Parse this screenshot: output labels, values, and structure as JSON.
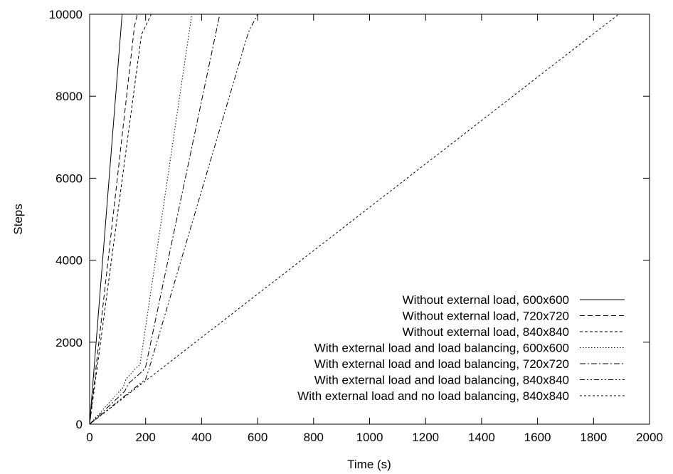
{
  "chart_data": {
    "type": "line",
    "title": "",
    "xlabel": "Time (s)",
    "ylabel": "Steps",
    "xlim": [
      0,
      2000
    ],
    "ylim": [
      0,
      10000
    ],
    "xticks": [
      0,
      200,
      400,
      600,
      800,
      1000,
      1200,
      1400,
      1600,
      1800,
      2000
    ],
    "yticks": [
      0,
      2000,
      4000,
      6000,
      8000,
      10000
    ],
    "grid": false,
    "legend_position": "bottom-right",
    "series": [
      {
        "name": "Without external load, 600x600",
        "dash": "solid",
        "points": [
          [
            0,
            0
          ],
          [
            116,
            10000
          ]
        ]
      },
      {
        "name": "Without external load, 720x720",
        "dash": "dashed",
        "points": [
          [
            0,
            0
          ],
          [
            160,
            9700
          ],
          [
            170,
            10000
          ]
        ]
      },
      {
        "name": "Without external load, 840x840",
        "dash": "short-dashed",
        "points": [
          [
            0,
            0
          ],
          [
            185,
            9500
          ],
          [
            220,
            10000
          ]
        ]
      },
      {
        "name": "With external load and load balancing, 600x600",
        "dash": "dotted",
        "points": [
          [
            0,
            0
          ],
          [
            120,
            900
          ],
          [
            130,
            1100
          ],
          [
            170,
            1400
          ],
          [
            180,
            1450
          ],
          [
            365,
            10000
          ]
        ]
      },
      {
        "name": "With external load and load balancing, 720x720",
        "dash": "dash-dot",
        "points": [
          [
            0,
            0
          ],
          [
            125,
            800
          ],
          [
            140,
            1000
          ],
          [
            190,
            1300
          ],
          [
            200,
            1400
          ],
          [
            465,
            10000
          ]
        ]
      },
      {
        "name": "With external load and load balancing, 840x840",
        "dash": "dash-dot-dot",
        "points": [
          [
            0,
            0
          ],
          [
            200,
            1100
          ],
          [
            210,
            1300
          ],
          [
            560,
            9400
          ],
          [
            570,
            9600
          ],
          [
            600,
            10000
          ]
        ]
      },
      {
        "name": "With external load and no load balancing, 840x840",
        "dash": "loose-dashed",
        "points": [
          [
            0,
            0
          ],
          [
            1890,
            10000
          ]
        ]
      }
    ]
  }
}
